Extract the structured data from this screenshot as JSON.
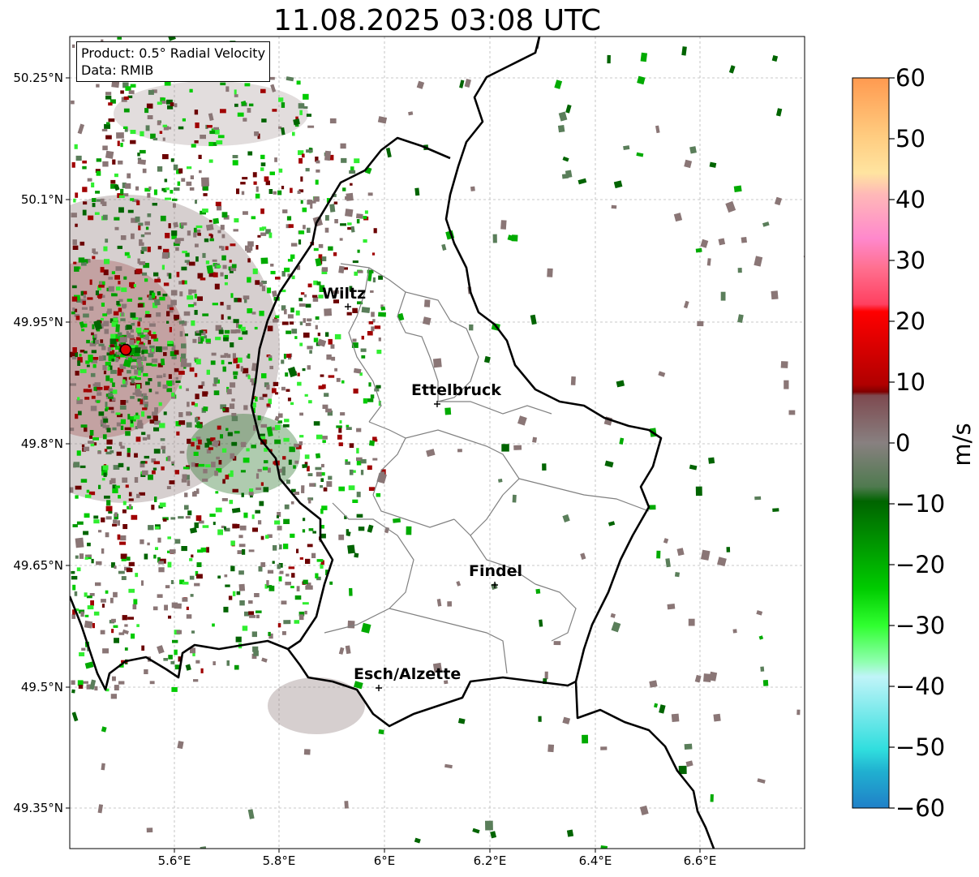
{
  "title": "11.08.2025 03:08 UTC",
  "info": {
    "product": "Product: 0.5° Radial Velocity",
    "source": "Data: RMIB"
  },
  "axes": {
    "lon_ticks": [
      "5.6°E",
      "5.8°E",
      "6°E",
      "6.2°E",
      "6.4°E",
      "6.6°E"
    ],
    "lat_ticks": [
      "50.25°N",
      "50.1°N",
      "49.95°N",
      "49.8°N",
      "49.65°N",
      "49.5°N",
      "49.35°N"
    ],
    "lon_range": [
      5.4,
      6.8
    ],
    "lat_range": [
      49.3,
      50.3
    ]
  },
  "places": [
    {
      "name": "Wiltz",
      "lon": 5.93,
      "lat": 49.966
    },
    {
      "name": "Ettelbruck",
      "lon": 6.104,
      "lat": 49.85
    },
    {
      "name": "Findel",
      "lon": 6.21,
      "lat": 49.627
    },
    {
      "name": "Esch/Alzette",
      "lon": 5.99,
      "lat": 49.5
    }
  ],
  "radar_site": {
    "lon": 5.505,
    "lat": 49.914
  },
  "colorbar": {
    "label": "m/s",
    "min": -60,
    "max": 60,
    "ticks": [
      "60",
      "50",
      "40",
      "30",
      "20",
      "10",
      "0",
      "−10",
      "−20",
      "−30",
      "−40",
      "−50",
      "−60"
    ]
  },
  "colors": {
    "border": "#000000",
    "cantons": "#808080",
    "radar_site": "#e00000"
  }
}
